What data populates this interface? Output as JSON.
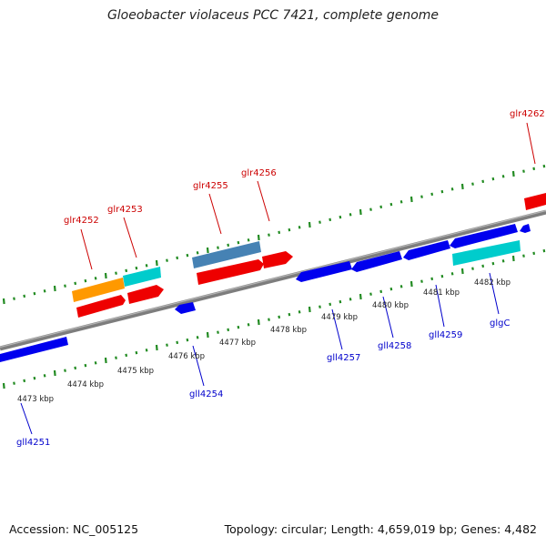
{
  "title": "Gloeobacter violaceus PCC 7421, complete genome",
  "footer": {
    "accession": "Accession: NC_005125",
    "topology": "Topology: circular; Length: 4,659,019 bp; Genes: 4,482"
  },
  "colors": {
    "forward_label": "#cc0000",
    "reverse_label": "#0000cc",
    "backbone": "#808080",
    "tick": "#228b22"
  },
  "forward_genes": [
    {
      "name": "glr4252"
    },
    {
      "name": "glr4253"
    },
    {
      "name": "glr4255"
    },
    {
      "name": "glr4256"
    },
    {
      "name": "glr4262"
    }
  ],
  "reverse_genes": [
    {
      "name": "gll4251"
    },
    {
      "name": "gll4254"
    },
    {
      "name": "gll4257"
    },
    {
      "name": "gll4258"
    },
    {
      "name": "gll4259"
    },
    {
      "name": "glgC"
    }
  ],
  "kbp_labels": [
    "4473 kbp",
    "4474 kbp",
    "4475 kbp",
    "4476 kbp",
    "4477 kbp",
    "4478 kbp",
    "4479 kbp",
    "4480 kbp",
    "4481 kbp",
    "4482 kbp"
  ]
}
